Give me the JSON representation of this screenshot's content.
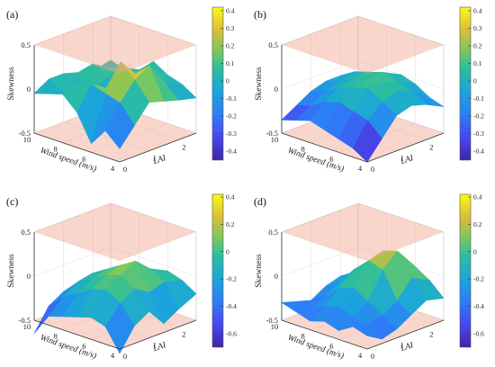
{
  "chart_data": [
    {
      "type": "surface",
      "panel": "(a)",
      "zlabel": "Skewness",
      "xlabel": "Wind speed (m/s)",
      "ylabel": "LAI",
      "x_ticks": [
        4,
        6,
        8,
        10
      ],
      "y_ticks": [
        0,
        1,
        2
      ],
      "z_ticks": [
        -0.5,
        0,
        0.5
      ],
      "xlim": [
        4,
        10
      ],
      "ylim": [
        0,
        2.6
      ],
      "zlim": [
        -0.5,
        0.5
      ],
      "threshold_planes": [
        -0.5,
        0.5
      ],
      "colorbar_range": [
        -0.45,
        0.42
      ],
      "colorbar_ticks": [
        0.4,
        0.3,
        0.2,
        0.1,
        0,
        -0.1,
        -0.2,
        -0.3,
        -0.4
      ],
      "colorbar_tick_labels": [
        "0.4",
        "0.3",
        "0.2",
        "0.1",
        "0",
        "-0.1",
        "-0.2",
        "-0.3",
        "-0.4"
      ],
      "grid": true,
      "surface_x": [
        4,
        5,
        6,
        7,
        8,
        9,
        10
      ],
      "surface_y": [
        0,
        0.5,
        1,
        1.5,
        2,
        2.6
      ],
      "surface_z": [
        [
          -0.35,
          -0.15,
          0.05,
          0.0,
          -0.05,
          -0.1
        ],
        [
          -0.2,
          0.05,
          0.25,
          0.35,
          0.1,
          0.0
        ],
        [
          -0.4,
          0.1,
          0.4,
          0.2,
          -0.05,
          0.05
        ],
        [
          -0.1,
          0.15,
          0.05,
          -0.1,
          0.05,
          0.15
        ],
        [
          0.05,
          0.1,
          -0.05,
          0.05,
          0.1,
          0.0
        ],
        [
          0.0,
          -0.05,
          0.1,
          0.15,
          0.05,
          -0.05
        ],
        [
          -0.05,
          0.05,
          0.05,
          0.0,
          -0.05,
          0.0
        ]
      ]
    },
    {
      "type": "surface",
      "panel": "(b)",
      "zlabel": "Skewness",
      "xlabel": "Wind speed (m/s)",
      "ylabel": "LAI",
      "x_ticks": [
        4,
        6,
        8,
        10
      ],
      "y_ticks": [
        0,
        1,
        2
      ],
      "z_ticks": [
        -0.5,
        0,
        0.5
      ],
      "xlim": [
        4,
        10
      ],
      "ylim": [
        0,
        2.6
      ],
      "zlim": [
        -0.5,
        0.5
      ],
      "threshold_planes": [
        -0.5,
        0.5
      ],
      "colorbar_range": [
        -0.45,
        0.42
      ],
      "colorbar_ticks": [
        0.4,
        0.3,
        0.2,
        0.1,
        0,
        -0.1,
        -0.2,
        -0.3,
        -0.4
      ],
      "colorbar_tick_labels": [
        "0.4",
        "0.3",
        "0.2",
        "0.1",
        "0",
        "-0.1",
        "-0.2",
        "-0.3",
        "-0.4"
      ],
      "grid": true,
      "surface_x": [
        4,
        5,
        6,
        7,
        8,
        9,
        10
      ],
      "surface_y": [
        0,
        0.5,
        1,
        1.5,
        2,
        2.6
      ],
      "surface_z": [
        [
          -0.5,
          -0.3,
          -0.1,
          -0.05,
          -0.1,
          -0.2
        ],
        [
          -0.4,
          -0.15,
          0.0,
          0.05,
          0.0,
          -0.15
        ],
        [
          -0.35,
          -0.1,
          0.1,
          0.1,
          0.05,
          -0.05
        ],
        [
          -0.3,
          -0.05,
          0.05,
          0.1,
          0.1,
          0.0
        ],
        [
          -0.25,
          -0.1,
          0.0,
          0.05,
          0.05,
          -0.05
        ],
        [
          -0.3,
          -0.2,
          -0.1,
          -0.05,
          0.0,
          -0.1
        ],
        [
          -0.35,
          -0.25,
          -0.15,
          -0.1,
          -0.1,
          -0.15
        ]
      ]
    },
    {
      "type": "surface",
      "panel": "(c)",
      "zlabel": "Skewness",
      "xlabel": "Wind speed (m/s)",
      "ylabel": "LAI",
      "x_ticks": [
        4,
        6,
        8,
        10
      ],
      "y_ticks": [
        0,
        1,
        2
      ],
      "z_ticks": [
        -0.5,
        0,
        0.5
      ],
      "xlim": [
        4,
        10
      ],
      "ylim": [
        0,
        2.6
      ],
      "zlim": [
        -0.5,
        0.5
      ],
      "threshold_planes": [
        -0.5,
        0.5
      ],
      "colorbar_range": [
        -0.7,
        0.42
      ],
      "colorbar_ticks": [
        0.4,
        0.2,
        0,
        -0.2,
        -0.4,
        -0.6
      ],
      "colorbar_tick_labels": [
        "0.4",
        "0.2",
        "0",
        "-0.2",
        "-0.4",
        "-0.6"
      ],
      "grid": true,
      "surface_x": [
        4,
        5,
        6,
        7,
        8,
        9,
        10
      ],
      "surface_y": [
        0,
        0.5,
        1,
        1.5,
        2,
        2.6
      ],
      "surface_z": [
        [
          -0.55,
          -0.3,
          -0.2,
          -0.4,
          -0.3,
          -0.2
        ],
        [
          -0.3,
          -0.1,
          0.0,
          -0.1,
          -0.05,
          -0.1
        ],
        [
          -0.25,
          0.0,
          0.1,
          0.2,
          0.05,
          -0.05
        ],
        [
          -0.3,
          -0.05,
          0.05,
          0.1,
          0.0,
          -0.1
        ],
        [
          -0.35,
          -0.15,
          -0.05,
          0.0,
          -0.1,
          -0.15
        ],
        [
          -0.4,
          -0.25,
          -0.15,
          -0.1,
          -0.2,
          -0.3
        ],
        [
          -0.65,
          -0.4,
          -0.3,
          -0.25,
          -0.3,
          -0.35
        ]
      ]
    },
    {
      "type": "surface",
      "panel": "(d)",
      "zlabel": "Skewness",
      "xlabel": "Wind speed (m/s)",
      "ylabel": "LAI",
      "x_ticks": [
        4,
        6,
        8,
        10
      ],
      "y_ticks": [
        0,
        1,
        2
      ],
      "z_ticks": [
        -0.5,
        0,
        0.5
      ],
      "xlim": [
        4,
        10
      ],
      "ylim": [
        0,
        2.6
      ],
      "zlim": [
        -0.5,
        0.5
      ],
      "threshold_planes": [
        -0.5,
        0.5
      ],
      "colorbar_range": [
        -0.7,
        0.42
      ],
      "colorbar_ticks": [
        0.4,
        0.2,
        0,
        -0.2,
        -0.4,
        -0.6
      ],
      "colorbar_tick_labels": [
        "0.4",
        "0.2",
        "0",
        "-0.2",
        "-0.4",
        "-0.6"
      ],
      "grid": true,
      "surface_x": [
        4,
        5,
        6,
        7,
        8,
        9,
        10
      ],
      "surface_y": [
        0,
        0.5,
        1,
        1.5,
        2,
        2.6
      ],
      "surface_z": [
        [
          -0.35,
          -0.45,
          -0.4,
          -0.3,
          -0.2,
          -0.25
        ],
        [
          -0.3,
          -0.35,
          -0.3,
          -0.2,
          0.0,
          -0.1
        ],
        [
          -0.4,
          -0.3,
          -0.2,
          0.1,
          0.25,
          0.0
        ],
        [
          -0.35,
          -0.25,
          -0.1,
          0.15,
          0.2,
          -0.05
        ],
        [
          -0.4,
          -0.3,
          -0.15,
          0.0,
          -0.05,
          -0.1
        ],
        [
          -0.35,
          -0.4,
          -0.3,
          -0.2,
          -0.15,
          -0.2
        ],
        [
          -0.3,
          -0.35,
          -0.4,
          -0.3,
          -0.25,
          -0.3
        ]
      ]
    }
  ]
}
